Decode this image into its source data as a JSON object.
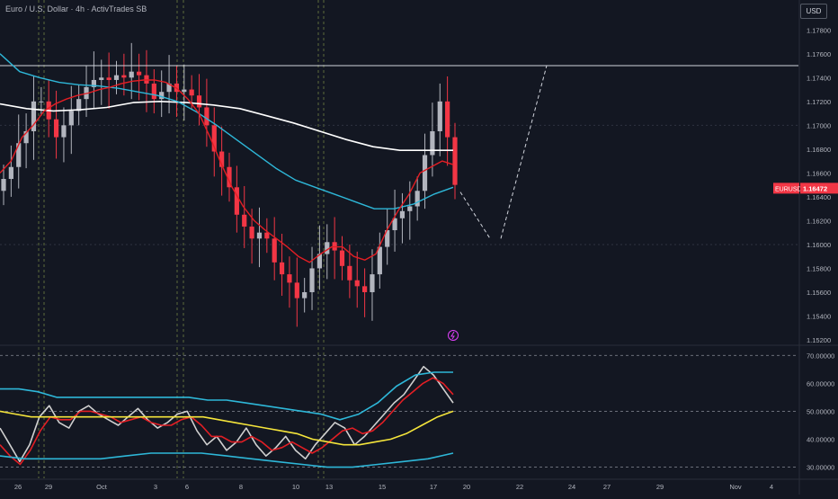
{
  "header": {
    "symbol_title": "Euro / U.S. Dollar · 4h · ActivTrades SB",
    "currency_badge": "USD"
  },
  "price_label": {
    "symbol": "EURUSD",
    "value": "1.16472",
    "value_num": 1.16472
  },
  "colors": {
    "bg": "#131722",
    "up": "#b2b5be",
    "down": "#f23645",
    "ema_red": "#e31e24",
    "ema_cyan": "#2eb7d8",
    "ma_white": "#ffffff",
    "rsi_white": "#d0d0d0",
    "rsi_red": "#e31e24",
    "rsi_cyan": "#2eb7d8",
    "rsi_yellow": "#f5e53b",
    "pink_icon": "#e040fb"
  },
  "chart_data": [
    {
      "type": "line",
      "subtype": "candlestick",
      "title": "Euro / U.S. Dollar · 4h · ActivTrades SB",
      "ylim": [
        1.152,
        1.179
      ],
      "y_ticks": [
        "1.17800",
        "1.17600",
        "1.17400",
        "1.17200",
        "1.17000",
        "1.16800",
        "1.16600",
        "1.16400",
        "1.16200",
        "1.16000",
        "1.15800",
        "1.15600",
        "1.15400",
        "1.15200"
      ],
      "x_ticks": [
        "26",
        "29",
        "Oct",
        "3",
        "6",
        "8",
        "10",
        "13",
        "15",
        "17",
        "20",
        "22",
        "24",
        "27",
        "29",
        "Nov",
        "4"
      ],
      "horizontal_line": 1.175,
      "close": [
        1.1655,
        1.1665,
        1.1685,
        1.1695,
        1.172,
        1.172,
        1.1705,
        1.169,
        1.17,
        1.1712,
        1.1722,
        1.1732,
        1.1738,
        1.174,
        1.1738,
        1.1742,
        1.174,
        1.1745,
        1.1742,
        1.1735,
        1.1722,
        1.1728,
        1.1735,
        1.1728,
        1.173,
        1.1725,
        1.1715,
        1.17,
        1.1678,
        1.1665,
        1.1648,
        1.1625,
        1.1615,
        1.1605,
        1.161,
        1.1605,
        1.1585,
        1.1575,
        1.1568,
        1.1555,
        1.156,
        1.158,
        1.1592,
        1.1602,
        1.1595,
        1.1582,
        1.157,
        1.1565,
        1.156,
        1.1575,
        1.1598,
        1.1612,
        1.1622,
        1.1628,
        1.1632,
        1.1645,
        1.1675,
        1.1695,
        1.172,
        1.169,
        1.165
      ],
      "ema_red": [
        1.166,
        1.167,
        1.169,
        1.17,
        1.1712,
        1.1718,
        1.1722,
        1.1725,
        1.1727,
        1.173,
        1.1732,
        1.1735,
        1.1737,
        1.1738,
        1.1738,
        1.1736,
        1.1731,
        1.1722,
        1.171,
        1.169,
        1.1668,
        1.1648,
        1.1632,
        1.162,
        1.1612,
        1.1605,
        1.1598,
        1.159,
        1.1585,
        1.1592,
        1.1598,
        1.1598,
        1.159,
        1.1587,
        1.1592,
        1.1612,
        1.1628,
        1.1642,
        1.166,
        1.1665,
        1.167,
        1.1667
      ],
      "ema_cyan": [
        1.176,
        1.1745,
        1.174,
        1.1736,
        1.1734,
        1.1733,
        1.1731,
        1.1728,
        1.1725,
        1.172,
        1.1711,
        1.17,
        1.1688,
        1.1676,
        1.1664,
        1.1654,
        1.1648,
        1.1642,
        1.1636,
        1.163,
        1.163,
        1.1634,
        1.1642,
        1.1648
      ],
      "ma_white": [
        1.1718,
        1.1714,
        1.1712,
        1.1713,
        1.1715,
        1.1719,
        1.172,
        1.1719,
        1.1717,
        1.1714,
        1.1708,
        1.1702,
        1.1695,
        1.1688,
        1.1682,
        1.1679,
        1.1679,
        1.1679
      ],
      "projection": [
        [
          1.1644,
          1.1605
        ],
        [
          1.1605,
          1.175
        ]
      ]
    },
    {
      "type": "line",
      "title": "",
      "ylim": [
        30,
        70
      ],
      "y_ticks": [
        "70.00000",
        "60.00000",
        "50.00000",
        "40.00000",
        "30.00000"
      ],
      "dashed_levels": [
        70,
        50,
        30
      ],
      "series": [
        {
          "color": "white",
          "values": [
            44,
            38,
            32,
            38,
            48,
            52,
            46,
            44,
            50,
            52,
            49,
            47,
            45,
            48,
            51,
            47,
            44,
            46,
            49,
            50,
            43,
            38,
            41,
            36,
            39,
            44,
            38,
            34,
            37,
            41,
            36,
            33,
            38,
            42,
            46,
            44,
            38,
            41,
            45,
            49,
            53,
            56,
            61,
            66,
            63,
            58,
            53
          ]
        },
        {
          "color": "red",
          "values": [
            38,
            34,
            31,
            36,
            43,
            48,
            47,
            47,
            50,
            50,
            49,
            48,
            46,
            47,
            48,
            46,
            45,
            45,
            47,
            48,
            45,
            41,
            41,
            39,
            39,
            41,
            39,
            36,
            37,
            39,
            37,
            35,
            37,
            40,
            43,
            44,
            42,
            43,
            46,
            50,
            54,
            57,
            60,
            62,
            60,
            56
          ]
        },
        {
          "color": "yellow",
          "values": [
            50,
            49,
            48,
            48,
            48,
            48,
            48,
            48,
            48,
            48,
            48,
            48,
            48,
            48,
            47,
            46,
            45,
            44,
            43,
            42,
            40,
            39,
            38,
            38,
            39,
            40,
            42,
            45,
            48,
            50
          ]
        },
        {
          "color": "cyan-upper",
          "values": [
            58,
            58,
            57,
            55,
            55,
            55,
            55,
            55,
            55,
            55,
            55,
            54,
            54,
            53,
            52,
            51,
            50,
            49,
            47,
            49,
            53,
            59,
            63,
            64,
            64
          ]
        },
        {
          "color": "cyan-lower",
          "values": [
            34,
            33,
            33,
            33,
            33,
            34,
            35,
            35,
            35,
            34,
            33,
            32,
            31,
            30,
            30,
            31,
            32,
            33,
            35
          ]
        }
      ]
    }
  ]
}
